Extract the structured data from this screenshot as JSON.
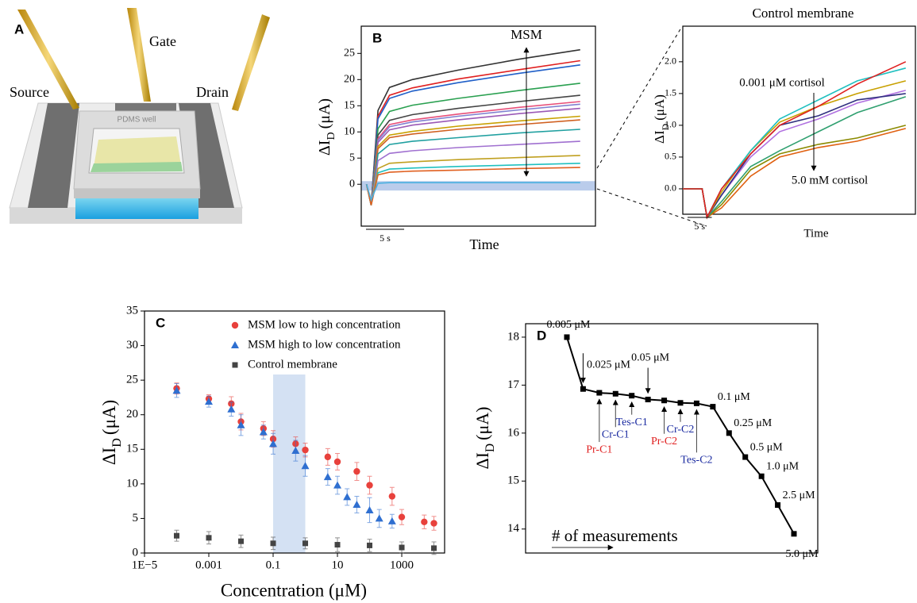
{
  "panel_a": {
    "label": "A",
    "source": "Source",
    "gate": "Gate",
    "drain": "Drain",
    "well": "PDMS well"
  },
  "chart_data": [
    {
      "type": "line",
      "label": "B",
      "x_label": "Time",
      "y_label": {
        "main": "ΔI",
        "sub": "D",
        "unit": "(μA)"
      },
      "annotation": "MSM",
      "scale_bar": "5 s",
      "x": [
        0,
        0.6,
        1.5,
        3,
        6,
        12,
        20,
        28
      ],
      "xlim": [
        -0.7,
        30
      ],
      "ylim": [
        -8,
        30.2
      ],
      "yticks": [
        0,
        5,
        10,
        15,
        20,
        25
      ],
      "series": [
        {
          "color": "#333333",
          "values": [
            0,
            -4,
            14.1,
            18.5,
            20.0,
            21.8,
            23.9,
            25.7
          ]
        },
        {
          "color": "#e02020",
          "values": [
            0,
            -4,
            13.0,
            17.0,
            18.4,
            20.1,
            21.9,
            23.6
          ]
        },
        {
          "color": "#1f5fc8",
          "values": [
            0,
            -4,
            12.5,
            16.4,
            17.8,
            19.4,
            21.2,
            22.8
          ]
        },
        {
          "color": "#2aa050",
          "values": [
            0,
            -4,
            10.6,
            13.9,
            15.1,
            16.4,
            17.9,
            19.3
          ]
        },
        {
          "color": "#444444",
          "values": [
            0,
            -4,
            9.4,
            12.2,
            13.3,
            14.5,
            15.8,
            17.0
          ]
        },
        {
          "color": "#e8507a",
          "values": [
            0,
            -4,
            8.7,
            11.4,
            12.3,
            13.4,
            14.7,
            15.8
          ]
        },
        {
          "color": "#8080d0",
          "values": [
            0,
            -4,
            8.4,
            11.0,
            11.9,
            13.0,
            14.2,
            15.3
          ]
        },
        {
          "color": "#9b59b6",
          "values": [
            0,
            -4,
            8.0,
            10.4,
            11.3,
            12.3,
            13.5,
            14.5
          ]
        },
        {
          "color": "#c8a000",
          "values": [
            0,
            -4,
            7.2,
            9.4,
            10.1,
            11.1,
            12.1,
            13.0
          ]
        },
        {
          "color": "#d06020",
          "values": [
            0,
            -4,
            6.8,
            8.9,
            9.6,
            10.5,
            11.4,
            12.3
          ]
        },
        {
          "color": "#20a0a0",
          "values": [
            0,
            -4,
            5.8,
            7.6,
            8.2,
            8.9,
            9.8,
            10.5
          ]
        },
        {
          "color": "#a070d0",
          "values": [
            0,
            -4,
            4.5,
            5.9,
            6.4,
            7.0,
            7.6,
            8.2
          ]
        },
        {
          "color": "#c0a020",
          "values": [
            0,
            -4,
            3.0,
            4.0,
            4.3,
            4.7,
            5.1,
            5.5
          ]
        },
        {
          "color": "#20c0c0",
          "values": [
            0,
            -4,
            2.2,
            2.9,
            3.1,
            3.4,
            3.7,
            4.0
          ]
        },
        {
          "color": "#e06020",
          "values": [
            0,
            -4,
            1.8,
            2.3,
            2.5,
            2.7,
            3.0,
            3.2
          ]
        },
        {
          "color": "#4ab0e0",
          "values": [
            0,
            -3,
            0.2,
            0.3,
            0.3,
            0.3,
            0.3,
            0.3
          ]
        }
      ]
    },
    {
      "type": "line",
      "title": "Control membrane",
      "x_label": "Time",
      "y_label": {
        "main": "ΔI",
        "sub": "D",
        "unit": "(μA)"
      },
      "annotations": [
        "0.001 μM cortisol",
        "5.0 mM cortisol"
      ],
      "scale_bar": "5 s",
      "x": [
        0,
        4,
        5,
        8,
        14,
        20,
        28,
        36,
        46
      ],
      "xlim": [
        0,
        48
      ],
      "ylim": [
        -0.4,
        2.56
      ],
      "yticks": [
        {
          "value": 0,
          "label": "0.0"
        },
        0.5,
        {
          "value": 1,
          "label": "1.0"
        },
        1.5,
        {
          "value": 2,
          "label": "2.0"
        }
      ],
      "series": [
        {
          "color": "#e06010",
          "values": [
            0,
            0,
            -0.45,
            -0.3,
            0.2,
            0.5,
            0.65,
            0.75,
            0.95
          ]
        },
        {
          "color": "#8a8a00",
          "values": [
            0,
            0,
            -0.45,
            -0.25,
            0.3,
            0.55,
            0.7,
            0.8,
            1.0
          ]
        },
        {
          "color": "#30a070",
          "values": [
            0,
            0,
            -0.45,
            -0.2,
            0.35,
            0.6,
            0.9,
            1.2,
            1.45
          ]
        },
        {
          "color": "#b070e0",
          "values": [
            0,
            0,
            -0.45,
            -0.1,
            0.5,
            0.9,
            1.1,
            1.35,
            1.55
          ]
        },
        {
          "color": "#303080",
          "values": [
            0,
            0,
            -0.45,
            -0.1,
            0.55,
            1.0,
            1.15,
            1.4,
            1.5
          ]
        },
        {
          "color": "#c8a000",
          "values": [
            0,
            0,
            -0.45,
            -0.05,
            0.6,
            1.05,
            1.3,
            1.5,
            1.7
          ]
        },
        {
          "color": "#20c0c0",
          "values": [
            0,
            0,
            -0.45,
            0,
            0.6,
            1.1,
            1.4,
            1.7,
            1.9
          ]
        },
        {
          "color": "#e02020",
          "values": [
            0,
            0,
            -0.45,
            0,
            0.55,
            1.0,
            1.3,
            1.65,
            2.0
          ]
        }
      ]
    },
    {
      "type": "scatter",
      "label": "C",
      "x_label": "Concentration (μM)",
      "y_label": {
        "main": "ΔI",
        "sub": "D",
        "unit": "(μA)"
      },
      "xscale": "log",
      "xlim": [
        1e-05,
        21500
      ],
      "xticks": [
        {
          "value": 1e-05,
          "label": "1E−5"
        },
        0.001,
        0.1,
        10,
        1000
      ],
      "ylim": [
        0,
        35
      ],
      "yticks": [
        0,
        5,
        10,
        15,
        20,
        25,
        30,
        35
      ],
      "legend": "upper center",
      "highlight_x": [
        0.1,
        1
      ],
      "series": [
        {
          "name": "MSM low to high concentration",
          "color": "#e8413c",
          "marker": "circle",
          "x": [
            0.0001,
            0.001,
            0.005,
            0.01,
            0.05,
            0.1,
            0.5,
            1,
            5,
            10,
            40,
            100,
            500,
            1000,
            5000,
            10000
          ],
          "values": [
            23.8,
            22.3,
            21.6,
            19.0,
            18.0,
            16.5,
            15.8,
            14.9,
            13.9,
            13.2,
            11.8,
            9.8,
            8.2,
            5.2,
            4.5,
            4.3
          ],
          "errors": [
            0.8,
            0.6,
            1.0,
            1.2,
            1.0,
            1.2,
            1.0,
            1.0,
            1.2,
            1.2,
            1.3,
            1.3,
            1.3,
            1.1,
            1.0,
            1.0
          ]
        },
        {
          "name": "MSM high to low concentration",
          "color": "#2f6fd0",
          "marker": "triangle",
          "x": [
            0.0001,
            0.001,
            0.005,
            0.01,
            0.05,
            0.1,
            0.5,
            1,
            5,
            10,
            20,
            40,
            100,
            200,
            500
          ],
          "values": [
            23.5,
            21.9,
            20.8,
            18.5,
            17.5,
            15.8,
            14.8,
            12.6,
            11.0,
            9.8,
            8.1,
            7.0,
            6.2,
            5.0,
            4.6
          ],
          "errors": [
            1.0,
            0.8,
            1.0,
            1.5,
            1.0,
            1.5,
            1.5,
            1.5,
            1.2,
            1.3,
            1.2,
            1.2,
            1.8,
            1.3,
            1.0
          ]
        },
        {
          "name": "Control membrane",
          "color": "#444444",
          "marker": "square",
          "x": [
            0.0001,
            0.001,
            0.01,
            0.1,
            1,
            10,
            100,
            1000,
            10000
          ],
          "values": [
            2.5,
            2.2,
            1.7,
            1.4,
            1.4,
            1.2,
            1.1,
            0.8,
            0.7
          ],
          "errors": [
            0.8,
            0.9,
            0.9,
            0.9,
            0.8,
            1.0,
            0.9,
            0.8,
            0.9
          ]
        }
      ]
    },
    {
      "type": "line",
      "label": "D",
      "x_label": "# of measurements",
      "y_label": {
        "main": "ΔI",
        "sub": "D",
        "unit": "(μA)"
      },
      "ylim": [
        13.5,
        18.28
      ],
      "yticks": [
        14,
        15,
        16,
        17,
        18
      ],
      "color": "#000000",
      "values": [
        18.0,
        16.92,
        16.84,
        16.82,
        16.78,
        16.7,
        16.68,
        16.63,
        16.62,
        16.55,
        16.0,
        15.5,
        15.1,
        14.5,
        13.9
      ],
      "point_labels": [
        "0.005 μM",
        "0.025 μM",
        null,
        null,
        null,
        "0.05 μM",
        null,
        null,
        null,
        "0.1 μM",
        "0.25 μM",
        "0.5 μM",
        "1.0 μM",
        "2.5 μM",
        "5.0 μM"
      ],
      "interferent_labels": [
        null,
        null,
        {
          "text": "Pr-C1",
          "color": "#e02020"
        },
        {
          "text": "Cr-C1",
          "color": "#1a2aa0"
        },
        {
          "text": "Tes-C1",
          "color": "#1a2aa0"
        },
        null,
        {
          "text": "Pr-C2",
          "color": "#e02020"
        },
        {
          "text": "Cr-C2",
          "color": "#1a2aa0"
        },
        {
          "text": "Tes-C2",
          "color": "#1a2aa0"
        },
        null,
        null,
        null,
        null,
        null,
        null
      ]
    }
  ]
}
